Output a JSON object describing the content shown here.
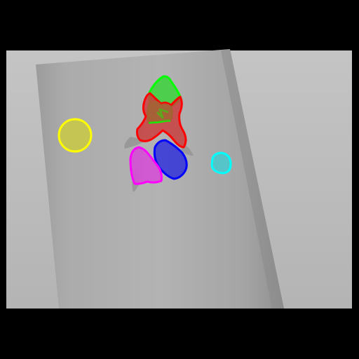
{
  "scene": {
    "letterbox_color": "#000000",
    "background_color": "#bdbdbd",
    "paper_color": "#a8a8a8",
    "shadow_color": "#8c8c8c"
  },
  "masks": [
    {
      "name": "green-object-mask",
      "color": "#00ff00"
    },
    {
      "name": "red-object-mask",
      "color": "#ff0000"
    },
    {
      "name": "yellow-object-mask",
      "color": "#ffff00"
    },
    {
      "name": "blue-object-mask",
      "color": "#0000ff"
    },
    {
      "name": "magenta-object-mask",
      "color": "#ff00ff"
    },
    {
      "name": "cyan-object-mask",
      "color": "#00ffff"
    }
  ]
}
